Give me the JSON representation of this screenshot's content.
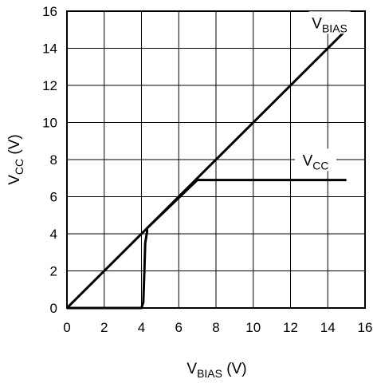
{
  "chart_data": {
    "type": "line",
    "xlabel": {
      "main": "V",
      "sub": "BIAS",
      "unit": " (V)"
    },
    "ylabel": {
      "main": "V",
      "sub": "CC",
      "unit": " (V)"
    },
    "xlim": [
      0,
      16
    ],
    "ylim": [
      0,
      16
    ],
    "xticks": [
      0,
      2,
      4,
      6,
      8,
      10,
      12,
      14,
      16
    ],
    "yticks": [
      0,
      2,
      4,
      6,
      8,
      10,
      12,
      14,
      16
    ],
    "grid": true,
    "series": [
      {
        "name": {
          "main": "V",
          "sub": "BIAS"
        },
        "x": [
          0,
          15
        ],
        "y": [
          0,
          15
        ]
      },
      {
        "name": {
          "main": "V",
          "sub": "CC"
        },
        "x": [
          0,
          4.0,
          4.1,
          4.15,
          4.2,
          4.3,
          4.3,
          7.0,
          15.0
        ],
        "y": [
          0,
          0,
          0.3,
          1.8,
          3.5,
          4.1,
          4.3,
          6.9,
          6.9
        ]
      }
    ],
    "annotations": [
      {
        "series": 0,
        "x": 14.1,
        "y": 15.3
      },
      {
        "series": 1,
        "x": 13.35,
        "y": 7.9
      }
    ],
    "colors": {
      "line": "#000000",
      "grid": "#000000",
      "background": "#ffffff"
    }
  }
}
